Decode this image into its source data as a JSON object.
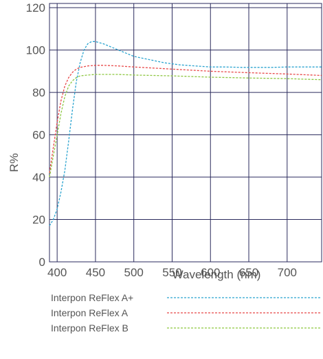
{
  "chart_data": {
    "type": "line",
    "xlabel": "Wavelength (nm)",
    "ylabel": "R%",
    "xlim": [
      390,
      745
    ],
    "ylim": [
      0,
      122
    ],
    "x_ticks": [
      400,
      450,
      500,
      550,
      600,
      650,
      700
    ],
    "y_ticks": [
      0,
      20,
      40,
      60,
      80,
      100,
      120
    ],
    "grid": true,
    "legend": "bottom",
    "series": [
      {
        "name": "Interpon ReFlex A+",
        "color": "#29a3cf",
        "points": [
          [
            390,
            17
          ],
          [
            395,
            20
          ],
          [
            400,
            25
          ],
          [
            405,
            33
          ],
          [
            410,
            43
          ],
          [
            415,
            57
          ],
          [
            420,
            72
          ],
          [
            425,
            85
          ],
          [
            430,
            94
          ],
          [
            435,
            100
          ],
          [
            440,
            103
          ],
          [
            445,
            104
          ],
          [
            450,
            104
          ],
          [
            455,
            103.5
          ],
          [
            460,
            103
          ],
          [
            470,
            101.5
          ],
          [
            480,
            100
          ],
          [
            490,
            98.5
          ],
          [
            500,
            97
          ],
          [
            520,
            95.5
          ],
          [
            540,
            94
          ],
          [
            560,
            93
          ],
          [
            580,
            92.5
          ],
          [
            600,
            92
          ],
          [
            620,
            92
          ],
          [
            640,
            91.8
          ],
          [
            660,
            91.8
          ],
          [
            680,
            91.8
          ],
          [
            700,
            92
          ],
          [
            720,
            92
          ],
          [
            745,
            92
          ]
        ]
      },
      {
        "name": "Interpon ReFlex A",
        "color": "#e84848",
        "points": [
          [
            390,
            42
          ],
          [
            395,
            54
          ],
          [
            400,
            66
          ],
          [
            405,
            76
          ],
          [
            410,
            83
          ],
          [
            415,
            87
          ],
          [
            420,
            89.5
          ],
          [
            425,
            91
          ],
          [
            430,
            91.8
          ],
          [
            440,
            92.5
          ],
          [
            450,
            92.8
          ],
          [
            460,
            92.8
          ],
          [
            480,
            92.5
          ],
          [
            500,
            92
          ],
          [
            550,
            91
          ],
          [
            600,
            90
          ],
          [
            650,
            89.3
          ],
          [
            700,
            88.7
          ],
          [
            745,
            88
          ]
        ]
      },
      {
        "name": "Interpon ReFlex B",
        "color": "#8cc63f",
        "points": [
          [
            390,
            40
          ],
          [
            395,
            50
          ],
          [
            400,
            60
          ],
          [
            405,
            70
          ],
          [
            410,
            78
          ],
          [
            415,
            83
          ],
          [
            420,
            85.5
          ],
          [
            425,
            87
          ],
          [
            430,
            87.8
          ],
          [
            440,
            88.2
          ],
          [
            450,
            88.5
          ],
          [
            460,
            88.5
          ],
          [
            480,
            88.5
          ],
          [
            500,
            88.2
          ],
          [
            550,
            87.8
          ],
          [
            600,
            87.2
          ],
          [
            650,
            86.8
          ],
          [
            700,
            86.5
          ],
          [
            745,
            86
          ]
        ]
      }
    ]
  }
}
